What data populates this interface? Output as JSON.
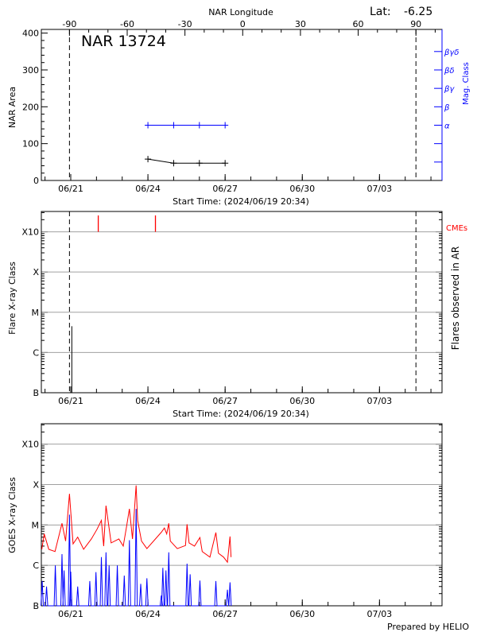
{
  "colors": {
    "axis": "#000000",
    "grid": "#a0a0a0",
    "mag_class": "#0000ff",
    "cme": "#ff0000",
    "goes_long": "#ff0000",
    "goes_short": "#0000ff"
  },
  "header": {
    "lat_label": "Lat:",
    "lat_value": "-6.25",
    "region": "NAR 13724"
  },
  "footer": {
    "credit": "Prepared by HELIO"
  },
  "chart_data": [
    {
      "type": "line",
      "title": "NAR 13724",
      "xlabel": "Start Time: (2024/06/19 20:34)",
      "xlim": [
        "2024-06-19T20:34",
        "2024-07-05T10:20"
      ],
      "xticks": [
        {
          "t": "2024-06-21T00:00",
          "label": "06/21"
        },
        {
          "t": "2024-06-24T00:00",
          "label": "06/24"
        },
        {
          "t": "2024-06-27T00:00",
          "label": "06/27"
        },
        {
          "t": "2024-06-30T00:00",
          "label": "06/30"
        },
        {
          "t": "2024-07-03T00:00",
          "label": "07/03"
        }
      ],
      "top_axis": {
        "label": "NAR Longitude",
        "range": [
          -90,
          90
        ],
        "ticks": [
          "-90",
          "-60",
          "-30",
          "0",
          "30",
          "60",
          "90"
        ]
      },
      "ylabel": "NAR Area",
      "ylim": [
        0,
        410
      ],
      "yticks": [
        "0",
        "100",
        "200",
        "300",
        "400"
      ],
      "y2label": "Mag. Class",
      "y2_classes": [
        {
          "label": "α",
          "value": 150
        },
        {
          "label": "β",
          "value": 200
        },
        {
          "label": "βγ",
          "value": 250
        },
        {
          "label": "βδ",
          "value": 300
        },
        {
          "label": "βγδ",
          "value": 350
        },
        {
          "label": "",
          "value": 100
        },
        {
          "label": "",
          "value": 50
        }
      ],
      "limb_lines": [
        "2024-06-20T22:48",
        "2024-07-04T10:00"
      ],
      "series": [
        {
          "kind": "area",
          "points": [
            [
              "2024-06-24T00:00",
              58
            ],
            [
              "2024-06-25T00:00",
              47
            ],
            [
              "2024-06-26T00:00",
              47
            ],
            [
              "2024-06-27T00:00",
              47
            ]
          ]
        },
        {
          "kind": "mag_class",
          "points": [
            [
              "2024-06-24T00:00",
              "α"
            ],
            [
              "2024-06-25T00:00",
              "α"
            ],
            [
              "2024-06-26T00:00",
              "α"
            ],
            [
              "2024-06-27T00:00",
              "α"
            ]
          ]
        }
      ]
    },
    {
      "type": "bar",
      "xlabel": "Start Time: (2024/06/19 20:34)",
      "ylabel": "Flare X-ray Class",
      "y2label": "Flares observed in AR",
      "yscale": "log",
      "ylim": [
        1e-07,
        0.0032
      ],
      "yticks": [
        {
          "v": 1e-07,
          "label": "B"
        },
        {
          "v": 1e-06,
          "label": "C"
        },
        {
          "v": 1e-05,
          "label": "M"
        },
        {
          "v": 0.0001,
          "label": "X"
        },
        {
          "v": 0.001,
          "label": "X10"
        }
      ],
      "grid": true,
      "flares": [
        [
          "2024-06-21T01:00",
          4.5e-06
        ]
      ],
      "cme_label": "CMEs",
      "cmes": [
        "2024-06-22T01:40",
        "2024-06-24T07:00"
      ]
    },
    {
      "type": "line",
      "ylabel": "GOES X-ray Class",
      "yscale": "log",
      "ylim": [
        1e-07,
        0.0032
      ],
      "yticks": [
        {
          "v": 1e-07,
          "label": "B"
        },
        {
          "v": 1e-06,
          "label": "C"
        },
        {
          "v": 1e-05,
          "label": "M"
        },
        {
          "v": 0.0001,
          "label": "X"
        },
        {
          "v": 0.001,
          "label": "X10"
        }
      ],
      "grid": true,
      "series": [
        {
          "kind": "long",
          "points": [
            [
              "2024-06-19T21:00",
              2.5e-06
            ],
            [
              "2024-06-19T23:15",
              6e-06
            ],
            [
              "2024-06-20T03:30",
              2.5e-06
            ],
            [
              "2024-06-20T09:20",
              2.2e-06
            ],
            [
              "2024-06-20T15:50",
              1.1e-05
            ],
            [
              "2024-06-20T19:12",
              4e-06
            ],
            [
              "2024-06-20T22:48",
              5.9e-05
            ],
            [
              "2024-06-21T02:10",
              3.4e-06
            ],
            [
              "2024-06-21T06:29",
              5e-06
            ],
            [
              "2024-06-21T12:00",
              2.5e-06
            ],
            [
              "2024-06-21T19:12",
              4.5e-06
            ],
            [
              "2024-06-22T00:29",
              7.8e-06
            ],
            [
              "2024-06-22T04:34",
              1.3e-05
            ],
            [
              "2024-06-22T06:43",
              3e-06
            ],
            [
              "2024-06-22T08:53",
              3e-05
            ],
            [
              "2024-06-22T13:41",
              3.6e-06
            ],
            [
              "2024-06-22T20:53",
              4.5e-06
            ],
            [
              "2024-06-23T00:58",
              3e-06
            ],
            [
              "2024-06-23T03:50",
              8.4e-06
            ],
            [
              "2024-06-23T06:43",
              2.5e-05
            ],
            [
              "2024-06-23T09:36",
              4.5e-06
            ],
            [
              "2024-06-23T12:58",
              9.5e-05
            ],
            [
              "2024-06-23T14:24",
              1.3e-05
            ],
            [
              "2024-06-23T18:00",
              4e-06
            ],
            [
              "2024-06-23T23:02",
              2.6e-06
            ],
            [
              "2024-06-24T12:29",
              6.6e-06
            ],
            [
              "2024-06-24T15:22",
              8.4e-06
            ],
            [
              "2024-06-24T17:31",
              6e-06
            ],
            [
              "2024-06-24T19:26",
              1.1e-05
            ],
            [
              "2024-06-24T20:53",
              4e-06
            ],
            [
              "2024-06-25T03:22",
              2.6e-06
            ],
            [
              "2024-06-25T11:02",
              3.1e-06
            ],
            [
              "2024-06-25T12:29",
              1.04e-05
            ],
            [
              "2024-06-25T14:24",
              3.6e-06
            ],
            [
              "2024-06-25T19:26",
              3e-06
            ],
            [
              "2024-06-26T00:29",
              4.9e-06
            ],
            [
              "2024-06-26T02:38",
              2.2e-06
            ],
            [
              "2024-06-26T09:50",
              1.6e-06
            ],
            [
              "2024-06-26T15:22",
              6.5e-06
            ],
            [
              "2024-06-26T17:46",
              2e-06
            ],
            [
              "2024-06-26T22:34",
              1.6e-06
            ],
            [
              "2024-06-27T02:10",
              1.2e-06
            ],
            [
              "2024-06-27T04:34",
              5.2e-06
            ],
            [
              "2024-06-27T05:31",
              1.6e-06
            ]
          ]
        },
        {
          "kind": "short",
          "points": [
            [
              "2024-06-19T21:20",
              4.1e-07
            ],
            [
              "2024-06-20T01:26",
              3e-07
            ],
            [
              "2024-06-20T09:36",
              1e-06
            ],
            [
              "2024-06-20T15:50",
              1.9e-06
            ],
            [
              "2024-06-20T17:46",
              7.5e-07
            ],
            [
              "2024-06-20T22:48",
              1.8e-05
            ],
            [
              "2024-06-21T00:00",
              7e-07
            ],
            [
              "2024-06-21T06:29",
              3e-07
            ],
            [
              "2024-06-21T17:46",
              4.1e-07
            ],
            [
              "2024-06-21T23:31",
              6.8e-07
            ],
            [
              "2024-06-22T04:34",
              1.6e-06
            ],
            [
              "2024-06-22T08:53",
              2.1e-06
            ],
            [
              "2024-06-22T11:46",
              1e-06
            ],
            [
              "2024-06-22T19:26",
              1e-06
            ],
            [
              "2024-06-23T01:55",
              5.6e-07
            ],
            [
              "2024-06-23T06:43",
              4.2e-06
            ],
            [
              "2024-06-23T12:58",
              2.5e-05
            ],
            [
              "2024-06-23T17:17",
              3.5e-07
            ],
            [
              "2024-06-23T23:02",
              4.8e-07
            ],
            [
              "2024-06-24T12:29",
              1.8e-07
            ],
            [
              "2024-06-24T13:55",
              8.7e-07
            ],
            [
              "2024-06-24T16:48",
              7.5e-07
            ],
            [
              "2024-06-24T19:26",
              2.1e-06
            ],
            [
              "2024-06-25T12:29",
              1.1e-06
            ],
            [
              "2024-06-25T15:22",
              6e-07
            ],
            [
              "2024-06-26T00:29",
              4.2e-07
            ],
            [
              "2024-06-26T15:22",
              4.1e-07
            ],
            [
              "2024-06-27T02:10",
              2.5e-07
            ],
            [
              "2024-06-27T04:34",
              3.8e-07
            ]
          ]
        }
      ]
    }
  ]
}
